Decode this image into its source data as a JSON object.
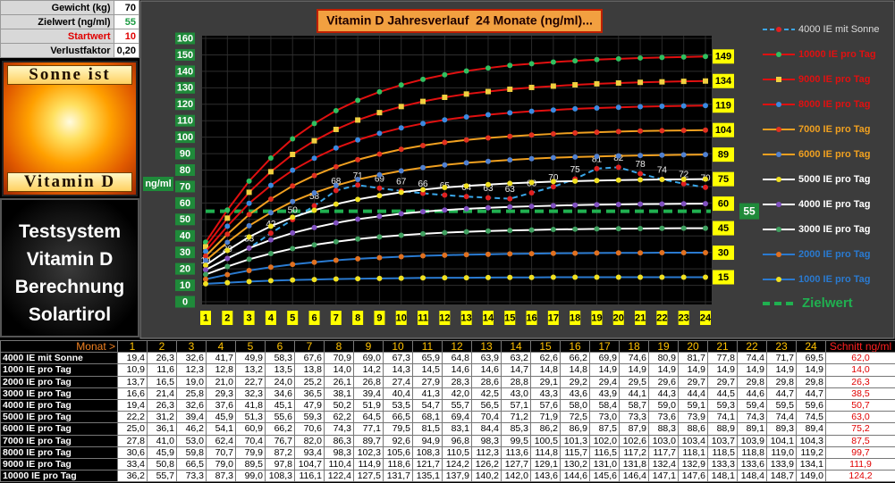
{
  "settings": {
    "rows": [
      {
        "label": "Gewicht (kg)",
        "value": "70"
      },
      {
        "label": "Zielwert (ng/ml)",
        "value": "55"
      },
      {
        "label": "Startwert",
        "value": "10"
      },
      {
        "label": "Verlustfaktor",
        "value": "0,20"
      }
    ]
  },
  "logo": {
    "top": "Sonne ist",
    "bottom": "Vitamin D"
  },
  "system_title": [
    "Testsystem",
    "Vitamin D",
    "Berechnung",
    "Solartirol"
  ],
  "chart_data": {
    "type": "line",
    "title": "Vitamin D Jahresverlauf  24 Monate (ng/ml)...",
    "y_label": "ng/ml",
    "categories": [
      "1",
      "2",
      "3",
      "4",
      "5",
      "6",
      "7",
      "8",
      "9",
      "10",
      "11",
      "12",
      "13",
      "14",
      "15",
      "16",
      "17",
      "18",
      "19",
      "20",
      "21",
      "22",
      "23",
      "24"
    ],
    "ylim": [
      0,
      160
    ],
    "yticks": [
      0,
      10,
      20,
      30,
      40,
      50,
      60,
      70,
      80,
      90,
      100,
      110,
      120,
      130,
      140,
      150,
      160
    ],
    "grid": true,
    "legend_position": "right",
    "series": [
      {
        "name": "4000 IE mit Sonne",
        "color": "#3aa6e8",
        "marker_color": "#e02020",
        "text_color": "#dddddd",
        "dash": true,
        "marker": "circle",
        "values": [
          19.4,
          26.3,
          32.6,
          41.7,
          49.9,
          58.3,
          67.6,
          70.9,
          69.0,
          67.3,
          65.9,
          64.8,
          63.9,
          63.2,
          62.6,
          66.2,
          69.9,
          74.6,
          80.9,
          81.7,
          77.8,
          74.4,
          71.7,
          69.5
        ],
        "value_labels": [
          "19",
          "26",
          "33",
          "42",
          "50",
          "58",
          "68",
          "71",
          "69",
          "67",
          "66",
          "65",
          "64",
          "63",
          "63",
          "66",
          "70",
          "75",
          "81",
          "82",
          "78",
          "74",
          "72",
          "70"
        ]
      },
      {
        "name": "10000 IE pro Tag",
        "color": "#e01010",
        "marker_color": "#30c060",
        "text_color": "#e01010",
        "marker": "circle",
        "end_label": "149",
        "values": [
          36.2,
          55.7,
          73.3,
          87.3,
          99.0,
          108.3,
          116.1,
          122.4,
          127.5,
          131.7,
          135.1,
          137.9,
          140.2,
          142.0,
          143.6,
          144.6,
          145.6,
          146.4,
          147.1,
          147.6,
          148.1,
          148.4,
          148.7,
          149.0
        ]
      },
      {
        "name": "9000 IE pro Tag",
        "color": "#e01010",
        "marker_color": "#f0d040",
        "text_color": "#e01010",
        "marker": "square",
        "end_label": "134",
        "values": [
          33.4,
          50.8,
          66.5,
          79.0,
          89.5,
          97.8,
          104.7,
          110.4,
          114.9,
          118.6,
          121.7,
          124.2,
          126.2,
          127.7,
          129.1,
          130.2,
          131.0,
          131.8,
          132.4,
          132.9,
          133.3,
          133.6,
          133.9,
          134.1
        ]
      },
      {
        "name": "8000 IE pro Tag",
        "color": "#e01010",
        "marker_color": "#3a8ae0",
        "text_color": "#e01010",
        "marker": "circle",
        "end_label": "119",
        "values": [
          30.6,
          45.9,
          59.8,
          70.7,
          79.9,
          87.2,
          93.4,
          98.3,
          102.3,
          105.6,
          108.3,
          110.5,
          112.3,
          113.6,
          114.8,
          115.7,
          116.5,
          117.2,
          117.7,
          118.1,
          118.5,
          118.8,
          119.0,
          119.2
        ]
      },
      {
        "name": "7000 IE pro Tag",
        "color": "#f0a020",
        "marker_color": "#e03020",
        "text_color": "#f0a020",
        "marker": "circle",
        "end_label": "104",
        "values": [
          27.8,
          41.0,
          53.0,
          62.4,
          70.4,
          76.7,
          82.0,
          86.3,
          89.7,
          92.6,
          94.9,
          96.8,
          98.3,
          99.5,
          100.5,
          101.3,
          102.0,
          102.6,
          103.0,
          103.4,
          103.7,
          103.9,
          104.1,
          104.3
        ]
      },
      {
        "name": "6000 IE pro Tag",
        "color": "#f0a020",
        "marker_color": "#5080d0",
        "text_color": "#f0a020",
        "marker": "circle",
        "end_label": "89",
        "values": [
          25.0,
          36.1,
          46.2,
          54.1,
          60.9,
          66.2,
          70.6,
          74.3,
          77.1,
          79.5,
          81.5,
          83.1,
          84.4,
          85.3,
          86.2,
          86.9,
          87.5,
          87.9,
          88.3,
          88.6,
          88.9,
          89.1,
          89.3,
          89.4
        ]
      },
      {
        "name": "5000 IE pro Tag",
        "color": "#ffffff",
        "marker_color": "#f0e020",
        "text_color": "#ffffff",
        "marker": "circle",
        "end_label": "75",
        "values": [
          22.2,
          31.2,
          39.4,
          45.9,
          51.3,
          55.6,
          59.3,
          62.2,
          64.5,
          66.5,
          68.1,
          69.4,
          70.4,
          71.2,
          71.9,
          72.5,
          73.0,
          73.3,
          73.6,
          73.9,
          74.1,
          74.3,
          74.4,
          74.5
        ]
      },
      {
        "name": "4000 IE pro Tag",
        "color": "#ffffff",
        "marker_color": "#8050c0",
        "text_color": "#ffffff",
        "marker": "circle",
        "end_label": "60",
        "values": [
          19.4,
          26.3,
          32.6,
          37.6,
          41.8,
          45.1,
          47.9,
          50.2,
          51.9,
          53.5,
          54.7,
          55.7,
          56.5,
          57.1,
          57.6,
          58.0,
          58.4,
          58.7,
          59.0,
          59.1,
          59.3,
          59.4,
          59.5,
          59.6
        ]
      },
      {
        "name": "3000 IE pro Tag",
        "color": "#ffffff",
        "marker_color": "#40a060",
        "text_color": "#ffffff",
        "marker": "circle",
        "end_label": "45",
        "values": [
          16.6,
          21.4,
          25.8,
          29.3,
          32.3,
          34.6,
          36.5,
          38.1,
          39.4,
          40.4,
          41.3,
          42.0,
          42.5,
          43.0,
          43.3,
          43.6,
          43.9,
          44.1,
          44.3,
          44.4,
          44.5,
          44.6,
          44.7,
          44.7
        ]
      },
      {
        "name": "2000 IE pro Tag",
        "color": "#2a7ad0",
        "marker_color": "#e07020",
        "text_color": "#2a7ad0",
        "marker": "circle",
        "end_label": "30",
        "values": [
          13.7,
          16.5,
          19.0,
          21.0,
          22.7,
          24.0,
          25.2,
          26.1,
          26.8,
          27.4,
          27.9,
          28.3,
          28.6,
          28.8,
          29.1,
          29.2,
          29.4,
          29.5,
          29.6,
          29.7,
          29.7,
          29.8,
          29.8,
          29.8
        ]
      },
      {
        "name": "1000 IE pro Tag",
        "color": "#2a7ad0",
        "marker_color": "#f0e020",
        "text_color": "#2a7ad0",
        "marker": "circle",
        "end_label": "15",
        "values": [
          10.9,
          11.6,
          12.3,
          12.8,
          13.2,
          13.5,
          13.8,
          14.0,
          14.2,
          14.3,
          14.5,
          14.6,
          14.6,
          14.7,
          14.8,
          14.8,
          14.9,
          14.9,
          14.9,
          14.9,
          14.9,
          14.9,
          14.9,
          14.9
        ]
      }
    ],
    "target": {
      "name": "Zielwert",
      "value": 55,
      "label": "55",
      "color": "#20b050"
    }
  },
  "table": {
    "header": [
      "Monat >",
      "1",
      "2",
      "3",
      "4",
      "5",
      "6",
      "7",
      "8",
      "9",
      "10",
      "11",
      "12",
      "13",
      "14",
      "15",
      "16",
      "17",
      "18",
      "19",
      "20",
      "21",
      "22",
      "23",
      "24",
      "Schnitt ng/ml"
    ],
    "rows": [
      [
        "4000 IE mit Sonne",
        "19,4",
        "26,3",
        "32,6",
        "41,7",
        "49,9",
        "58,3",
        "67,6",
        "70,9",
        "69,0",
        "67,3",
        "65,9",
        "64,8",
        "63,9",
        "63,2",
        "62,6",
        "66,2",
        "69,9",
        "74,6",
        "80,9",
        "81,7",
        "77,8",
        "74,4",
        "71,7",
        "69,5",
        "62,0"
      ],
      [
        "1000 IE pro Tag",
        "10,9",
        "11,6",
        "12,3",
        "12,8",
        "13,2",
        "13,5",
        "13,8",
        "14,0",
        "14,2",
        "14,3",
        "14,5",
        "14,6",
        "14,6",
        "14,7",
        "14,8",
        "14,8",
        "14,9",
        "14,9",
        "14,9",
        "14,9",
        "14,9",
        "14,9",
        "14,9",
        "14,9",
        "14,0"
      ],
      [
        "2000 IE pro Tag",
        "13,7",
        "16,5",
        "19,0",
        "21,0",
        "22,7",
        "24,0",
        "25,2",
        "26,1",
        "26,8",
        "27,4",
        "27,9",
        "28,3",
        "28,6",
        "28,8",
        "29,1",
        "29,2",
        "29,4",
        "29,5",
        "29,6",
        "29,7",
        "29,7",
        "29,8",
        "29,8",
        "29,8",
        "26,3"
      ],
      [
        "3000 IE pro Tag",
        "16,6",
        "21,4",
        "25,8",
        "29,3",
        "32,3",
        "34,6",
        "36,5",
        "38,1",
        "39,4",
        "40,4",
        "41,3",
        "42,0",
        "42,5",
        "43,0",
        "43,3",
        "43,6",
        "43,9",
        "44,1",
        "44,3",
        "44,4",
        "44,5",
        "44,6",
        "44,7",
        "44,7",
        "38,5"
      ],
      [
        "4000 IE pro Tag",
        "19,4",
        "26,3",
        "32,6",
        "37,6",
        "41,8",
        "45,1",
        "47,9",
        "50,2",
        "51,9",
        "53,5",
        "54,7",
        "55,7",
        "56,5",
        "57,1",
        "57,6",
        "58,0",
        "58,4",
        "58,7",
        "59,0",
        "59,1",
        "59,3",
        "59,4",
        "59,5",
        "59,6",
        "50,7"
      ],
      [
        "5000 IE pro Tag",
        "22,2",
        "31,2",
        "39,4",
        "45,9",
        "51,3",
        "55,6",
        "59,3",
        "62,2",
        "64,5",
        "66,5",
        "68,1",
        "69,4",
        "70,4",
        "71,2",
        "71,9",
        "72,5",
        "73,0",
        "73,3",
        "73,6",
        "73,9",
        "74,1",
        "74,3",
        "74,4",
        "74,5",
        "63,0"
      ],
      [
        "6000 IE pro Tag",
        "25,0",
        "36,1",
        "46,2",
        "54,1",
        "60,9",
        "66,2",
        "70,6",
        "74,3",
        "77,1",
        "79,5",
        "81,5",
        "83,1",
        "84,4",
        "85,3",
        "86,2",
        "86,9",
        "87,5",
        "87,9",
        "88,3",
        "88,6",
        "88,9",
        "89,1",
        "89,3",
        "89,4",
        "75,2"
      ],
      [
        "7000 IE pro Tag",
        "27,8",
        "41,0",
        "53,0",
        "62,4",
        "70,4",
        "76,7",
        "82,0",
        "86,3",
        "89,7",
        "92,6",
        "94,9",
        "96,8",
        "98,3",
        "99,5",
        "100,5",
        "101,3",
        "102,0",
        "102,6",
        "103,0",
        "103,4",
        "103,7",
        "103,9",
        "104,1",
        "104,3",
        "87,5"
      ],
      [
        "8000 IE pro Tag",
        "30,6",
        "45,9",
        "59,8",
        "70,7",
        "79,9",
        "87,2",
        "93,4",
        "98,3",
        "102,3",
        "105,6",
        "108,3",
        "110,5",
        "112,3",
        "113,6",
        "114,8",
        "115,7",
        "116,5",
        "117,2",
        "117,7",
        "118,1",
        "118,5",
        "118,8",
        "119,0",
        "119,2",
        "99,7"
      ],
      [
        "9000 IE pro Tag",
        "33,4",
        "50,8",
        "66,5",
        "79,0",
        "89,5",
        "97,8",
        "104,7",
        "110,4",
        "114,9",
        "118,6",
        "121,7",
        "124,2",
        "126,2",
        "127,7",
        "129,1",
        "130,2",
        "131,0",
        "131,8",
        "132,4",
        "132,9",
        "133,3",
        "133,6",
        "133,9",
        "134,1",
        "111,9"
      ],
      [
        "10000 IE pro Tag",
        "36,2",
        "55,7",
        "73,3",
        "87,3",
        "99,0",
        "108,3",
        "116,1",
        "122,4",
        "127,5",
        "131,7",
        "135,1",
        "137,9",
        "140,2",
        "142,0",
        "143,6",
        "144,6",
        "145,6",
        "146,4",
        "147,1",
        "147,6",
        "148,1",
        "148,4",
        "148,7",
        "149,0",
        "124,2"
      ]
    ]
  }
}
